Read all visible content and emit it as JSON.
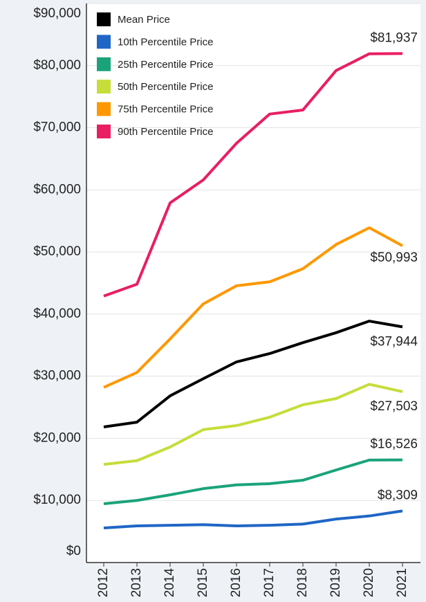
{
  "chart_data": {
    "type": "line",
    "categories": [
      "2012",
      "2013",
      "2014",
      "2015",
      "2016",
      "2017",
      "2018",
      "2019",
      "2020",
      "2021"
    ],
    "series": [
      {
        "name": "Mean Price",
        "color": "#000000",
        "values": [
          21830,
          22600,
          26840,
          29600,
          32300,
          33640,
          35400,
          37000,
          38870,
          37944
        ],
        "value_labels": [
          null,
          null,
          null,
          null,
          null,
          null,
          null,
          null,
          null,
          "$37,944"
        ]
      },
      {
        "name": "10th Percentile Price",
        "color": "#1f66c6",
        "values": [
          5570,
          5900,
          6000,
          6100,
          5900,
          6000,
          6200,
          7000,
          7500,
          8309
        ],
        "value_labels": [
          null,
          null,
          null,
          null,
          null,
          null,
          null,
          null,
          null,
          "$8,309"
        ]
      },
      {
        "name": "25th Percentile Price",
        "color": "#1aa37a",
        "values": [
          9470,
          10000,
          10900,
          11900,
          12500,
          12700,
          13250,
          14900,
          16500,
          16526
        ],
        "value_labels": [
          null,
          null,
          null,
          null,
          null,
          null,
          null,
          null,
          null,
          "$16,526"
        ]
      },
      {
        "name": "50th Percentile Price",
        "color": "#c6dd3a",
        "values": [
          15800,
          16400,
          18600,
          21400,
          22050,
          23400,
          25400,
          26400,
          28700,
          27503
        ],
        "value_labels": [
          null,
          null,
          null,
          null,
          null,
          null,
          null,
          null,
          null,
          "$27,503"
        ]
      },
      {
        "name": "75th Percentile Price",
        "color": "#ff9800",
        "values": [
          28200,
          30600,
          36000,
          41650,
          44550,
          45200,
          47300,
          51200,
          53900,
          50993
        ],
        "value_labels": [
          null,
          null,
          null,
          null,
          null,
          null,
          null,
          null,
          null,
          "$50,993"
        ]
      },
      {
        "name": "90th Percentile Price",
        "color": "#e91e63",
        "values": [
          42900,
          44800,
          57900,
          61600,
          67500,
          72200,
          72850,
          79200,
          81900,
          81937
        ],
        "value_labels": [
          null,
          null,
          null,
          null,
          null,
          null,
          null,
          null,
          null,
          "$81,937"
        ]
      }
    ],
    "ylim": [
      0,
      90000
    ],
    "yticks": [
      {
        "value": 0,
        "label": "$0"
      },
      {
        "value": 10000,
        "label": "$10,000"
      },
      {
        "value": 20000,
        "label": "$20,000"
      },
      {
        "value": 30000,
        "label": "$30,000"
      },
      {
        "value": 40000,
        "label": "$40,000"
      },
      {
        "value": 50000,
        "label": "$50,000"
      },
      {
        "value": 60000,
        "label": "$60,000"
      },
      {
        "value": 70000,
        "label": "$70,000"
      },
      {
        "value": 80000,
        "label": "$80,000"
      },
      {
        "value": 90000,
        "label": "$90,000"
      }
    ],
    "grid": true,
    "legend": "top-left"
  }
}
